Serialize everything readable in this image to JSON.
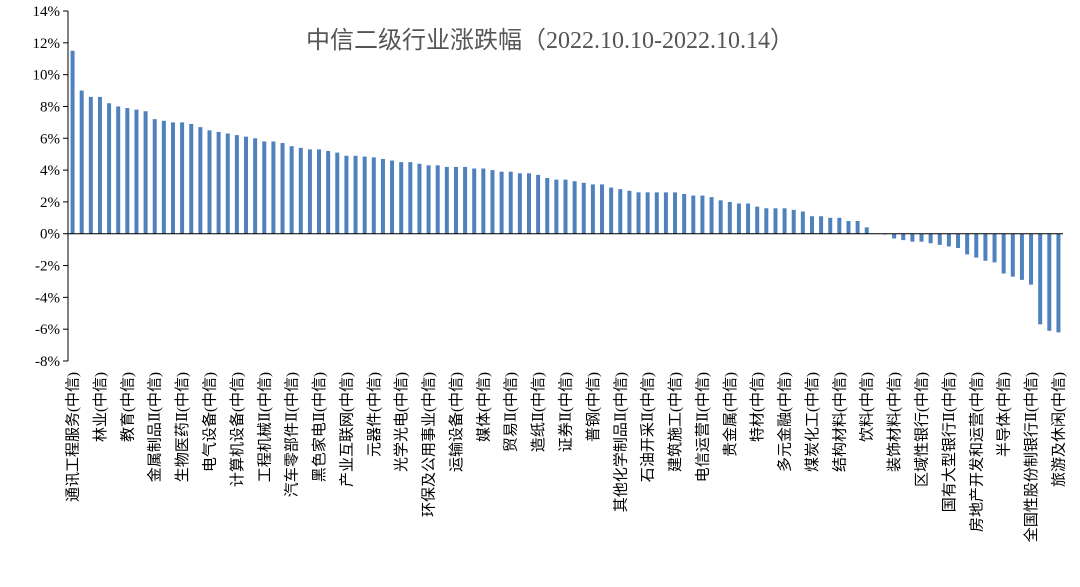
{
  "chart_data": {
    "type": "bar",
    "title": "中信二级行业涨跌幅（2022.10.10-2022.10.14）",
    "color": "#4f81bd",
    "ylim": [
      -8,
      14
    ],
    "yticks": [
      {
        "value": -8,
        "label": "-8%"
      },
      {
        "value": -6,
        "label": "-6%"
      },
      {
        "value": -4,
        "label": "-4%"
      },
      {
        "value": -2,
        "label": "-2%"
      },
      {
        "value": 0,
        "label": "0%"
      },
      {
        "value": 2,
        "label": "2%"
      },
      {
        "value": 4,
        "label": "4%"
      },
      {
        "value": 6,
        "label": "6%"
      },
      {
        "value": 8,
        "label": "8%"
      },
      {
        "value": 10,
        "label": "10%"
      },
      {
        "value": 12,
        "label": "12%"
      },
      {
        "value": 14,
        "label": "14%"
      }
    ],
    "categories": [
      "通讯工程服务(中信)",
      null,
      null,
      "林业(中信)",
      null,
      null,
      "教育(中信)",
      null,
      null,
      "金属制品Ⅱ(中信)",
      null,
      null,
      "生物医药Ⅱ(中信)",
      null,
      null,
      "电气设备(中信)",
      null,
      null,
      "计算机设备(中信)",
      null,
      null,
      "工程机械Ⅱ(中信)",
      null,
      null,
      "汽车零部件Ⅱ(中信)",
      null,
      null,
      "黑色家电Ⅱ(中信)",
      null,
      null,
      "产业互联网(中信)",
      null,
      null,
      "元器件(中信)",
      null,
      null,
      "光学光电(中信)",
      null,
      null,
      "环保及公用事业(中信)",
      null,
      null,
      "运输设备(中信)",
      null,
      null,
      "媒体(中信)",
      null,
      null,
      "贸易Ⅱ(中信)",
      null,
      null,
      "造纸Ⅱ(中信)",
      null,
      null,
      "证券Ⅱ(中信)",
      null,
      null,
      "普钢(中信)",
      null,
      null,
      "其他化学制品Ⅱ(中信)",
      null,
      null,
      "石油开采Ⅱ(中信)",
      null,
      null,
      "建筑施工(中信)",
      null,
      null,
      "电信运营Ⅱ(中信)",
      null,
      null,
      "贵金属(中信)",
      null,
      null,
      "特材(中信)",
      null,
      null,
      "多元金融(中信)",
      null,
      null,
      "煤炭化工(中信)",
      null,
      null,
      "结构材料(中信)",
      null,
      null,
      "饮料(中信)",
      null,
      null,
      "装饰材料(中信)",
      null,
      null,
      "区域性银行(中信)",
      null,
      null,
      "国有大型银行Ⅱ(中信)",
      null,
      null,
      "房地产开发和运营(中信)",
      null,
      null,
      "半导体(中信)",
      null,
      null,
      "全国性股份制银行Ⅱ(中信)",
      null,
      null,
      "旅游及休闲(中信)"
    ],
    "values": [
      11.5,
      9.0,
      8.6,
      8.6,
      8.2,
      8.0,
      7.9,
      7.8,
      7.7,
      7.2,
      7.1,
      7.0,
      7.0,
      6.9,
      6.7,
      6.5,
      6.4,
      6.3,
      6.2,
      6.1,
      6.0,
      5.8,
      5.8,
      5.7,
      5.5,
      5.4,
      5.3,
      5.3,
      5.2,
      5.1,
      4.9,
      4.9,
      4.85,
      4.8,
      4.7,
      4.6,
      4.5,
      4.5,
      4.4,
      4.3,
      4.3,
      4.2,
      4.2,
      4.2,
      4.1,
      4.1,
      4.0,
      3.9,
      3.9,
      3.8,
      3.8,
      3.7,
      3.5,
      3.4,
      3.4,
      3.3,
      3.2,
      3.1,
      3.1,
      2.9,
      2.8,
      2.7,
      2.6,
      2.6,
      2.6,
      2.6,
      2.6,
      2.5,
      2.4,
      2.4,
      2.3,
      2.1,
      2.0,
      1.9,
      1.9,
      1.7,
      1.6,
      1.6,
      1.6,
      1.5,
      1.4,
      1.1,
      1.1,
      1.0,
      1.0,
      0.8,
      0.8,
      0.4,
      0.02,
      -0.05,
      -0.3,
      -0.4,
      -0.5,
      -0.5,
      -0.6,
      -0.7,
      -0.8,
      -0.9,
      -1.3,
      -1.5,
      -1.7,
      -1.8,
      -2.5,
      -2.7,
      -2.9,
      -3.2,
      -5.7,
      -6.1,
      -6.2
    ]
  }
}
